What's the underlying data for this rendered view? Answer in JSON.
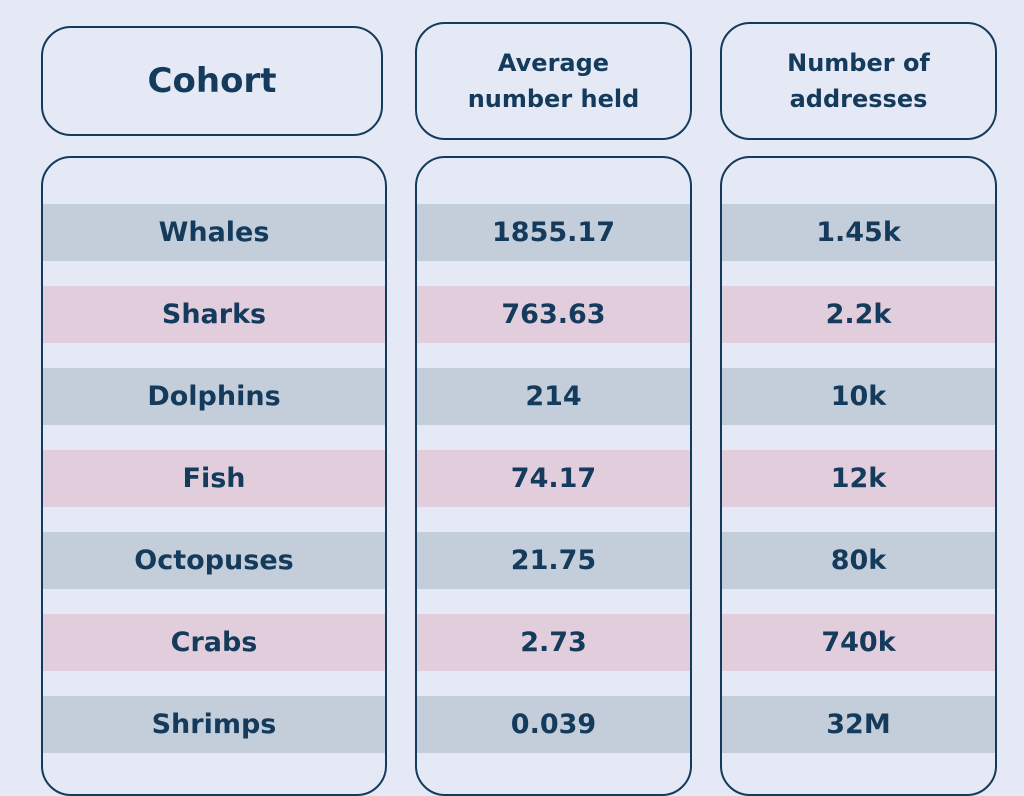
{
  "chart_data": {
    "type": "table",
    "columns": [
      "Cohort",
      "Average number held",
      "Number of addresses"
    ],
    "header_lines": [
      [
        "Cohort"
      ],
      [
        "Average",
        "number held"
      ],
      [
        "Number of",
        "addresses"
      ]
    ],
    "rows": [
      [
        "Whales",
        "1855.17",
        "1.45k"
      ],
      [
        "Sharks",
        "763.63",
        "2.2k"
      ],
      [
        "Dolphins",
        "214",
        "10k"
      ],
      [
        "Fish",
        "74.17",
        "12k"
      ],
      [
        "Octopuses",
        "21.75",
        "80k"
      ],
      [
        "Crabs",
        "2.73",
        "740k"
      ],
      [
        "Shrimps",
        "0.039",
        "32M"
      ]
    ],
    "row_colors": [
      "#c3ceda",
      "#e2cddc"
    ],
    "text_color": "#143a5c",
    "background": "#e5e9f5"
  }
}
